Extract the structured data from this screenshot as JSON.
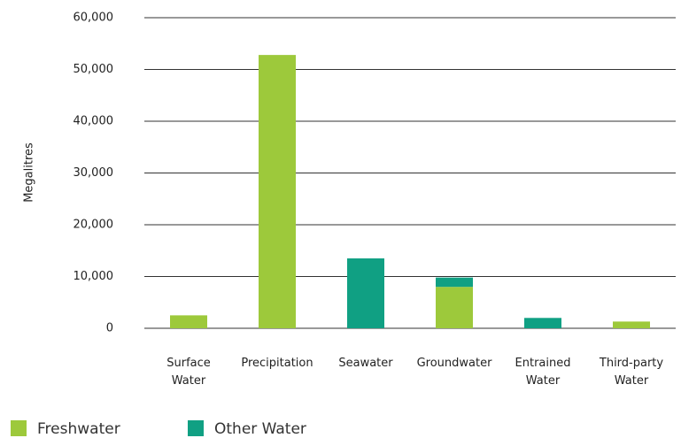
{
  "chart_data": {
    "type": "stacked_bar",
    "y_label": "Megalitres",
    "categories": [
      "Surface Water",
      "Precipitation",
      "Seawater",
      "Groundwater",
      "Entrained Water",
      "Third-party Water"
    ],
    "series": [
      {
        "name": "Freshwater",
        "color": "#9dc93b",
        "values": [
          2500,
          52800,
          0,
          8000,
          0,
          1300
        ]
      },
      {
        "name": "Other Water",
        "color": "#10a083",
        "values": [
          0,
          0,
          13500,
          1800,
          2000,
          0
        ]
      }
    ],
    "ylim": [
      0,
      60000
    ],
    "yticks": [
      0,
      {
        "value": 10000,
        "label": "10,000"
      },
      {
        "value": 20000,
        "label": "20,000"
      },
      {
        "value": 30000,
        "label": "30,000"
      },
      {
        "value": 40000,
        "label": "40,000"
      },
      {
        "value": 50000,
        "label": "50,000"
      },
      {
        "value": 60000,
        "label": "60,000"
      }
    ],
    "grid": true
  }
}
